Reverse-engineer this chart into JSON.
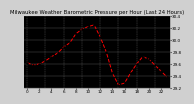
{
  "title": "Milwaukee Weather Barometric Pressure per Hour (Last 24 Hours)",
  "bg_color": "#d0d0d0",
  "plot_bg_color": "#000000",
  "line_color": "red",
  "marker_color": "black",
  "grid_color": "#606060",
  "hours": [
    0,
    1,
    2,
    3,
    4,
    5,
    6,
    7,
    8,
    9,
    10,
    11,
    12,
    13,
    14,
    15,
    16,
    17,
    18,
    19,
    20,
    21,
    22,
    23
  ],
  "pressure": [
    29.62,
    29.58,
    29.6,
    29.65,
    29.72,
    29.78,
    29.88,
    29.95,
    30.1,
    30.18,
    30.22,
    30.25,
    30.05,
    29.8,
    29.45,
    29.25,
    29.28,
    29.45,
    29.6,
    29.72,
    29.68,
    29.58,
    29.48,
    29.38
  ],
  "ylim_min": 29.2,
  "ylim_max": 30.4,
  "ytick_step": 0.2,
  "yticks": [
    29.2,
    29.4,
    29.6,
    29.8,
    30.0,
    30.2,
    30.4
  ],
  "xticks": [
    0,
    2,
    4,
    6,
    8,
    10,
    12,
    14,
    16,
    18,
    20,
    22
  ],
  "title_fontsize": 3.8,
  "tick_fontsize": 3.0,
  "line_width": 0.7,
  "marker_size": 1.5,
  "title_color": "#000000",
  "tick_color": "#000000",
  "spine_color": "#888888"
}
